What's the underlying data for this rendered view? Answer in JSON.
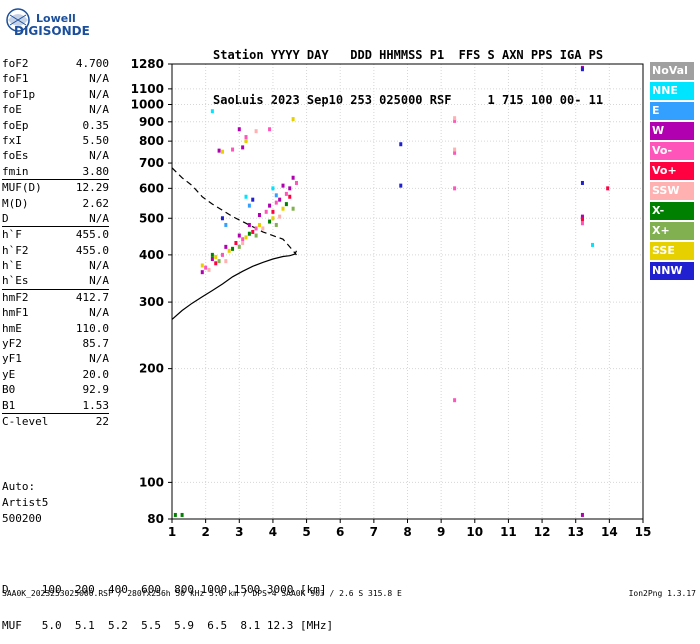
{
  "logo": {
    "top": "Lowell",
    "bottom": "DIGISONDE"
  },
  "header": {
    "line1": "Station YYYY DAY   DDD HHMMSS P1  FFS S AXN PPS IGA PS",
    "line2": "SaoLuis 2023 Sep10 253 025000 RSF     1 715 100 00- 11"
  },
  "params": [
    {
      "name": "foF2",
      "value": "4.700"
    },
    {
      "name": "foF1",
      "value": "N/A"
    },
    {
      "name": "foF1p",
      "value": "N/A"
    },
    {
      "name": "foE",
      "value": "N/A"
    },
    {
      "name": "foEp",
      "value": "0.35"
    },
    {
      "name": "fxI",
      "value": "5.50"
    },
    {
      "name": "foEs",
      "value": "N/A"
    },
    {
      "name": "fmin",
      "value": "3.80"
    },
    {
      "name": "MUF(D)",
      "value": "12.29",
      "sep": true
    },
    {
      "name": "M(D)",
      "value": "2.62"
    },
    {
      "name": "D",
      "value": "N/A"
    },
    {
      "name": "h`F",
      "value": "455.0",
      "sep": true
    },
    {
      "name": "h`F2",
      "value": "455.0"
    },
    {
      "name": "h`E",
      "value": "N/A"
    },
    {
      "name": "h`Es",
      "value": "N/A"
    },
    {
      "name": "hmF2",
      "value": "412.7",
      "sep": true
    },
    {
      "name": "hmF1",
      "value": "N/A"
    },
    {
      "name": "hmE",
      "value": "110.0"
    },
    {
      "name": "yF2",
      "value": "85.7"
    },
    {
      "name": "yF1",
      "value": "N/A"
    },
    {
      "name": "yE",
      "value": "20.0"
    },
    {
      "name": "B0",
      "value": "92.9"
    },
    {
      "name": "B1",
      "value": "1.53"
    },
    {
      "name": "C-level",
      "value": "22",
      "sep": true
    }
  ],
  "auto": {
    "line1": "Auto:",
    "line2": "Artist5",
    "line3": "500200"
  },
  "legend": [
    {
      "label": "NoVal",
      "color": "#a0a0a0"
    },
    {
      "label": "NNE",
      "color": "#00e5ff"
    },
    {
      "label": "E",
      "color": "#33a0ff"
    },
    {
      "label": "W",
      "color": "#b000b0"
    },
    {
      "label": "Vo-",
      "color": "#ff55bb"
    },
    {
      "label": "Vo+",
      "color": "#ff0040"
    },
    {
      "label": "SSW",
      "color": "#ffb0b0"
    },
    {
      "label": "X-",
      "color": "#008000"
    },
    {
      "label": "X+",
      "color": "#80b050"
    },
    {
      "label": "SSE",
      "color": "#e6d000"
    },
    {
      "label": "NNW",
      "color": "#2020d0"
    }
  ],
  "footer": {
    "line1": "D     100  200  400  600  800 1000 1500 3000 [km]",
    "line2": "MUF   5.0  5.1  5.2  5.5  5.9  6.5  8.1 12.3 [MHz]"
  },
  "bottom_line": "SAA0K_2023253025000.RSF / 280fx256h 50 kHz 5.0 km / DPS-4 SAA0K 903 / 2.6 S 315.8 E",
  "version": "Ion2Png 1.3.17",
  "chart_data": {
    "type": "scatter",
    "title": "",
    "xlabel": "",
    "ylabel": "",
    "xlim": [
      1,
      15
    ],
    "ylim": [
      80,
      1280
    ],
    "y_axis": "logarithmic",
    "xticks": [
      1,
      2,
      3,
      4,
      5,
      6,
      7,
      8,
      9,
      10,
      11,
      12,
      13,
      14,
      15
    ],
    "yticks": [
      80,
      100,
      200,
      300,
      400,
      500,
      600,
      700,
      800,
      900,
      1000,
      1100,
      1280
    ],
    "grid": true,
    "legend_position": "right",
    "series": [
      {
        "name": "W",
        "color": "#b000b0",
        "points": [
          [
            1.9,
            360
          ],
          [
            2.2,
            390
          ],
          [
            2.6,
            420
          ],
          [
            3.0,
            450
          ],
          [
            3.3,
            480
          ],
          [
            3.6,
            510
          ],
          [
            3.9,
            540
          ],
          [
            4.2,
            560
          ],
          [
            4.5,
            600
          ],
          [
            2.4,
            755
          ],
          [
            3.1,
            770
          ],
          [
            3.0,
            860
          ],
          [
            4.3,
            610
          ],
          [
            4.6,
            640
          ],
          [
            13.2,
            1250
          ],
          [
            13.2,
            505
          ],
          [
            13.2,
            500
          ],
          [
            13.2,
            82
          ]
        ]
      },
      {
        "name": "Vo-",
        "color": "#ff55bb",
        "points": [
          [
            2.0,
            370
          ],
          [
            2.5,
            400
          ],
          [
            3.1,
            440
          ],
          [
            3.5,
            470
          ],
          [
            3.8,
            520
          ],
          [
            4.1,
            550
          ],
          [
            4.4,
            580
          ],
          [
            4.7,
            620
          ],
          [
            2.8,
            760
          ],
          [
            3.2,
            820
          ],
          [
            3.9,
            860
          ],
          [
            9.4,
            905
          ],
          [
            9.4,
            745
          ],
          [
            9.4,
            600
          ],
          [
            9.4,
            165
          ],
          [
            13.2,
            485
          ]
        ]
      },
      {
        "name": "Vo+",
        "color": "#ff0040",
        "points": [
          [
            2.3,
            380
          ],
          [
            2.9,
            430
          ],
          [
            3.4,
            460
          ],
          [
            4.0,
            520
          ],
          [
            4.5,
            570
          ],
          [
            13.2,
            497
          ],
          [
            13.95,
            600
          ]
        ]
      },
      {
        "name": "SSE",
        "color": "#e6d000",
        "points": [
          [
            1.9,
            375
          ],
          [
            2.3,
            395
          ],
          [
            2.7,
            410
          ],
          [
            3.2,
            445
          ],
          [
            3.6,
            480
          ],
          [
            4.0,
            500
          ],
          [
            4.3,
            530
          ],
          [
            2.5,
            750
          ],
          [
            3.2,
            800
          ],
          [
            4.6,
            915
          ]
        ]
      },
      {
        "name": "SSW",
        "color": "#ffb0b0",
        "points": [
          [
            2.1,
            365
          ],
          [
            2.6,
            385
          ],
          [
            3.1,
            430
          ],
          [
            3.7,
            470
          ],
          [
            4.2,
            505
          ],
          [
            3.5,
            850
          ],
          [
            9.4,
            920
          ],
          [
            9.4,
            760
          ]
        ]
      },
      {
        "name": "X-",
        "color": "#008000",
        "points": [
          [
            2.2,
            400
          ],
          [
            2.8,
            415
          ],
          [
            3.3,
            455
          ],
          [
            3.9,
            490
          ],
          [
            4.4,
            545
          ],
          [
            1.1,
            82
          ],
          [
            1.3,
            82
          ]
        ]
      },
      {
        "name": "X+",
        "color": "#80b050",
        "points": [
          [
            2.4,
            385
          ],
          [
            3.0,
            420
          ],
          [
            3.5,
            450
          ],
          [
            4.1,
            480
          ],
          [
            4.6,
            530
          ]
        ]
      },
      {
        "name": "NNE",
        "color": "#00e5ff",
        "points": [
          [
            2.2,
            960
          ],
          [
            3.2,
            570
          ],
          [
            4.0,
            600
          ],
          [
            13.5,
            425
          ]
        ]
      },
      {
        "name": "E",
        "color": "#33a0ff",
        "points": [
          [
            2.6,
            480
          ],
          [
            3.3,
            540
          ],
          [
            4.1,
            575
          ]
        ]
      },
      {
        "name": "NNW",
        "color": "#2020d0",
        "points": [
          [
            2.5,
            500
          ],
          [
            3.4,
            560
          ],
          [
            7.8,
            785
          ],
          [
            7.8,
            610
          ],
          [
            13.2,
            620
          ],
          [
            13.2,
            1240
          ]
        ]
      }
    ],
    "curves": [
      {
        "style": "dashed",
        "x": [
          1.0,
          1.3,
          1.6,
          1.9,
          2.2,
          2.5,
          2.8,
          3.1,
          3.4,
          3.7,
          4.0,
          4.3,
          4.45,
          4.6,
          4.7
        ],
        "y": [
          680,
          640,
          610,
          570,
          545,
          525,
          505,
          490,
          475,
          460,
          450,
          440,
          425,
          410,
          400
        ]
      },
      {
        "style": "solid",
        "x": [
          1.0,
          1.3,
          1.6,
          1.9,
          2.2,
          2.5,
          2.8,
          3.1,
          3.4,
          3.7,
          4.0,
          4.3,
          4.5,
          4.65,
          4.7
        ],
        "y": [
          270,
          285,
          298,
          310,
          322,
          335,
          350,
          362,
          373,
          382,
          390,
          396,
          398,
          402,
          410
        ]
      }
    ]
  }
}
